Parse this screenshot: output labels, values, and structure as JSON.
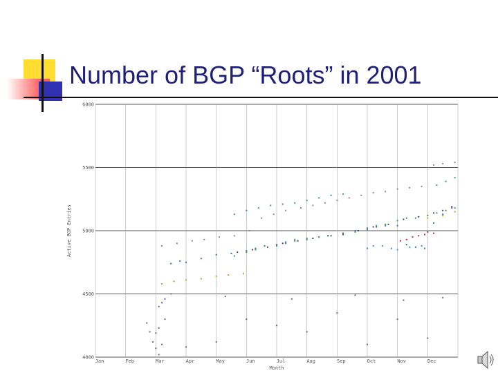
{
  "slide": {
    "title": "Number of BGP “Roots” in 2001",
    "accent_colors": {
      "yellow": "#ffdd33",
      "red": "#ff5a5a",
      "blue": "#3030b0",
      "title": "#1f1f7a"
    }
  },
  "speaker_icon": "speaker-icon",
  "chart_data": {
    "type": "scatter",
    "xlabel": "Month",
    "ylabel": "Active BGP Entries",
    "categories": [
      "Jan",
      "Feb",
      "Mar",
      "Apr",
      "May",
      "Jun",
      "Jul",
      "Aug",
      "Sep",
      "Oct",
      "Nov",
      "Dec"
    ],
    "y_ticks": [
      4000,
      4500,
      5000,
      5500,
      6000
    ],
    "y_tick_labels": [
      "4000",
      "4500",
      "5000",
      "5500",
      "6000"
    ],
    "ylim": [
      4000,
      6000
    ],
    "xlim": [
      0,
      12
    ],
    "grid": true,
    "series": [
      {
        "color": "#3a66c4",
        "values": [
          [
            2.1,
            4400
          ],
          [
            2.2,
            4430
          ],
          [
            2.3,
            4460
          ],
          [
            2.5,
            4740
          ],
          [
            2.8,
            4760
          ],
          [
            3.0,
            4750
          ],
          [
            3.5,
            4780
          ],
          [
            4.0,
            4810
          ],
          [
            4.5,
            4820
          ],
          [
            5.0,
            4840
          ],
          [
            5.3,
            4860
          ],
          [
            5.6,
            4880
          ],
          [
            6.0,
            4890
          ],
          [
            6.3,
            4910
          ],
          [
            6.6,
            4920
          ],
          [
            7.0,
            4930
          ],
          [
            7.4,
            4950
          ],
          [
            7.8,
            4960
          ],
          [
            8.2,
            4980
          ],
          [
            8.6,
            5000
          ],
          [
            9.0,
            5010
          ],
          [
            9.3,
            5030
          ],
          [
            9.6,
            5040
          ],
          [
            10.0,
            5040
          ],
          [
            10.3,
            4890
          ],
          [
            10.6,
            4870
          ],
          [
            10.9,
            4860
          ],
          [
            11.2,
            5060
          ],
          [
            11.5,
            5130
          ],
          [
            11.8,
            5180
          ]
        ]
      },
      {
        "color": "#3aa04a",
        "values": [
          [
            4.6,
            4800
          ],
          [
            5.0,
            4830
          ],
          [
            5.3,
            4850
          ],
          [
            5.6,
            4880
          ],
          [
            6.0,
            4880
          ],
          [
            6.3,
            4900
          ],
          [
            6.6,
            4930
          ],
          [
            7.0,
            4940
          ],
          [
            7.4,
            4950
          ],
          [
            7.8,
            4960
          ],
          [
            8.2,
            4980
          ],
          [
            8.6,
            4990
          ],
          [
            9.0,
            5020
          ],
          [
            9.3,
            5040
          ],
          [
            9.6,
            5050
          ],
          [
            10.0,
            5080
          ],
          [
            10.3,
            5100
          ],
          [
            10.6,
            5100
          ],
          [
            11.0,
            5120
          ],
          [
            11.3,
            5140
          ],
          [
            11.6,
            5160
          ],
          [
            11.9,
            5180
          ]
        ]
      },
      {
        "color": "#4b3a7a",
        "values": [
          [
            4.7,
            4830
          ],
          [
            5.2,
            4850
          ],
          [
            5.7,
            4870
          ],
          [
            6.2,
            4900
          ],
          [
            6.7,
            4920
          ],
          [
            7.2,
            4940
          ],
          [
            7.7,
            4960
          ],
          [
            8.2,
            4970
          ],
          [
            8.7,
            5000
          ],
          [
            9.2,
            5030
          ],
          [
            9.7,
            5050
          ],
          [
            10.2,
            5090
          ],
          [
            10.7,
            5110
          ],
          [
            11.2,
            5140
          ],
          [
            11.5,
            5160
          ],
          [
            11.8,
            5190
          ]
        ]
      },
      {
        "color": "#cc2020",
        "values": [
          [
            10.1,
            4920
          ],
          [
            10.3,
            4930
          ],
          [
            10.5,
            4950
          ],
          [
            10.7,
            4960
          ],
          [
            10.9,
            4970
          ],
          [
            11.0,
            4990
          ],
          [
            11.2,
            4980
          ]
        ]
      },
      {
        "color": "#2a9ad0",
        "values": [
          [
            9.0,
            4860
          ],
          [
            9.2,
            4880
          ],
          [
            9.5,
            4880
          ],
          [
            9.8,
            4860
          ],
          [
            10.0,
            4850
          ],
          [
            10.4,
            4870
          ],
          [
            10.8,
            4880
          ]
        ]
      },
      {
        "color": "#c8a020",
        "values": [
          [
            2.2,
            4580
          ],
          [
            2.6,
            4600
          ],
          [
            3.0,
            4610
          ],
          [
            3.5,
            4620
          ],
          [
            4.0,
            4640
          ],
          [
            4.4,
            4650
          ],
          [
            4.9,
            4660
          ],
          [
            11.0,
            5100
          ],
          [
            11.5,
            5120
          ],
          [
            11.9,
            5150
          ]
        ]
      },
      {
        "color": "#888888",
        "values": [
          [
            2.2,
            4880
          ],
          [
            2.7,
            4900
          ],
          [
            3.2,
            4920
          ],
          [
            3.6,
            4930
          ],
          [
            4.1,
            4950
          ],
          [
            4.6,
            4960
          ],
          [
            5.1,
            5000
          ],
          [
            5.5,
            5100
          ],
          [
            5.9,
            5130
          ],
          [
            6.3,
            5160
          ],
          [
            6.8,
            5180
          ],
          [
            7.2,
            5200
          ],
          [
            7.6,
            5220
          ],
          [
            8.0,
            5240
          ],
          [
            8.4,
            5260
          ],
          [
            8.8,
            5280
          ],
          [
            9.2,
            5300
          ],
          [
            9.6,
            5310
          ],
          [
            10.0,
            5330
          ],
          [
            10.4,
            5340
          ],
          [
            10.8,
            5350
          ],
          [
            11.2,
            5520
          ],
          [
            11.5,
            5530
          ],
          [
            11.9,
            5540
          ]
        ]
      },
      {
        "color": "#2aa080",
        "values": [
          [
            4.6,
            5130
          ],
          [
            5.0,
            5160
          ],
          [
            5.4,
            5180
          ],
          [
            5.8,
            5200
          ],
          [
            6.2,
            5210
          ],
          [
            6.6,
            5220
          ],
          [
            7.0,
            5240
          ],
          [
            7.4,
            5260
          ],
          [
            7.8,
            5280
          ],
          [
            8.2,
            5290
          ],
          [
            11.3,
            5360
          ],
          [
            11.6,
            5390
          ],
          [
            11.9,
            5420
          ]
        ]
      },
      {
        "color": "#6a6a6a",
        "values": [
          [
            1.7,
            4270
          ],
          [
            1.8,
            4200
          ],
          [
            1.9,
            4120
          ],
          [
            2.0,
            4070
          ],
          [
            2.0,
            4190
          ],
          [
            2.1,
            4230
          ],
          [
            2.2,
            4100
          ],
          [
            2.3,
            4300
          ],
          [
            2.1,
            4020
          ],
          [
            3.0,
            4080
          ],
          [
            4.0,
            4120
          ],
          [
            5.0,
            4300
          ],
          [
            6.0,
            4250
          ],
          [
            7.0,
            4200
          ],
          [
            8.0,
            4350
          ],
          [
            9.0,
            4100
          ],
          [
            10.0,
            4300
          ],
          [
            11.0,
            4150
          ],
          [
            2.5,
            4500
          ],
          [
            4.3,
            4480
          ],
          [
            6.5,
            4460
          ],
          [
            8.6,
            4490
          ],
          [
            10.2,
            4450
          ],
          [
            11.5,
            4470
          ]
        ]
      }
    ]
  }
}
